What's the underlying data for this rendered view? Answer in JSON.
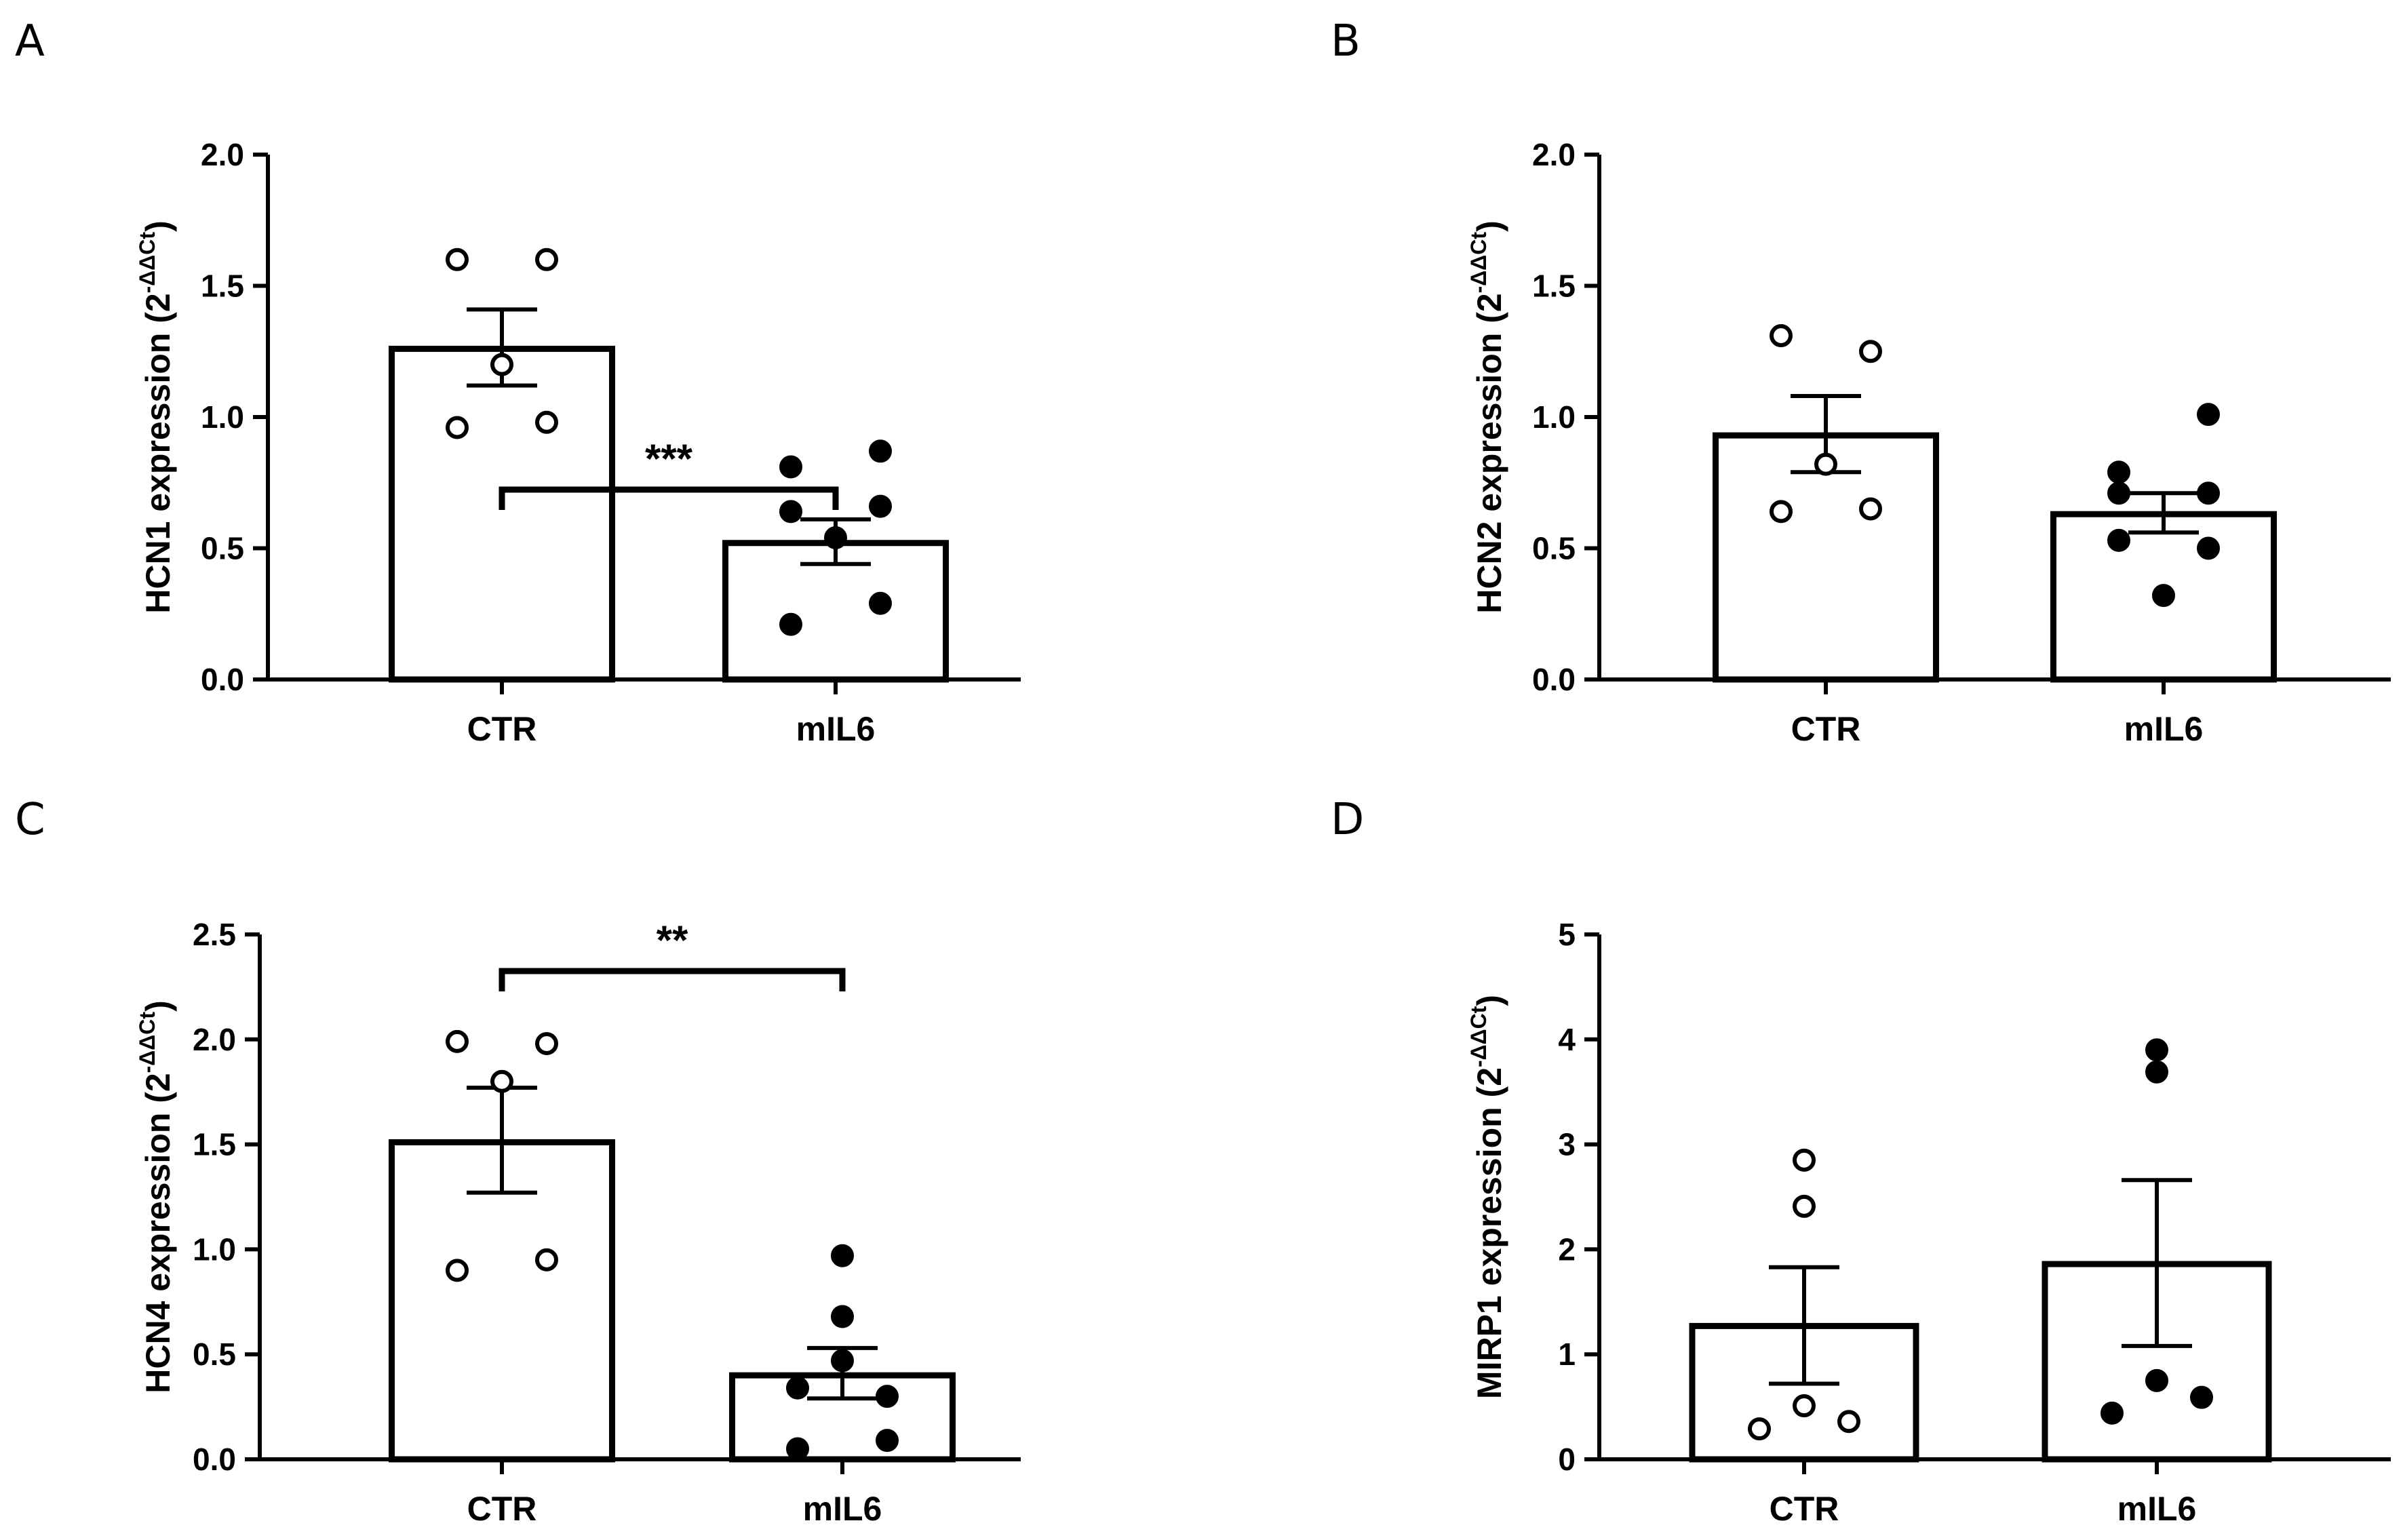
{
  "chart_data": [
    {
      "panel": "A",
      "type": "bar",
      "categories": [
        "CTR",
        "mIL6"
      ],
      "ylabel": "HCN1 expression (2",
      "ylabel_exponent": "-ΔΔCt",
      "ylabel_close": ")",
      "ylim": [
        0,
        2.0
      ],
      "yticks": [
        "0.0",
        "0.5",
        "1.0",
        "1.5",
        "2.0"
      ],
      "ytick_values": [
        0,
        0.5,
        1.0,
        1.5,
        2.0
      ],
      "bars": [
        {
          "mean": 1.26,
          "sem_low": 1.12,
          "sem_high": 1.41
        },
        {
          "mean": 0.52,
          "sem_low": 0.44,
          "sem_high": 0.61
        }
      ],
      "points": [
        [
          [
            -0.15,
            1.6
          ],
          [
            0.15,
            1.6
          ],
          [
            0.0,
            1.2
          ],
          [
            -0.15,
            0.96
          ],
          [
            0.15,
            0.98
          ]
        ],
        [
          [
            -0.15,
            0.81
          ],
          [
            0.15,
            0.87
          ],
          [
            -0.15,
            0.64
          ],
          [
            0.15,
            0.66
          ],
          [
            0.0,
            0.54
          ],
          [
            -0.15,
            0.21
          ],
          [
            0.15,
            0.29
          ]
        ]
      ],
      "significance": "***"
    },
    {
      "panel": "B",
      "type": "bar",
      "categories": [
        "CTR",
        "mIL6"
      ],
      "ylabel": "HCN2 expression (2",
      "ylabel_exponent": "-ΔΔCt",
      "ylabel_close": ")",
      "ylim": [
        0,
        2.0
      ],
      "yticks": [
        "0.0",
        "0.5",
        "1.0",
        "1.5",
        "2.0"
      ],
      "ytick_values": [
        0,
        0.5,
        1.0,
        1.5,
        2.0
      ],
      "bars": [
        {
          "mean": 0.93,
          "sem_low": 0.79,
          "sem_high": 1.08
        },
        {
          "mean": 0.63,
          "sem_low": 0.56,
          "sem_high": 0.71
        }
      ],
      "points": [
        [
          [
            -0.15,
            1.31
          ],
          [
            0.15,
            1.25
          ],
          [
            0.0,
            0.82
          ],
          [
            -0.15,
            0.64
          ],
          [
            0.15,
            0.65
          ]
        ],
        [
          [
            0.15,
            1.01
          ],
          [
            -0.15,
            0.79
          ],
          [
            -0.15,
            0.71
          ],
          [
            0.15,
            0.71
          ],
          [
            -0.15,
            0.53
          ],
          [
            0.15,
            0.5
          ],
          [
            0.0,
            0.32
          ]
        ]
      ],
      "significance": ""
    },
    {
      "panel": "C",
      "type": "bar",
      "categories": [
        "CTR",
        "mIL6"
      ],
      "ylabel": "HCN4 expression (2",
      "ylabel_exponent": "-ΔΔCt",
      "ylabel_close": ")",
      "ylim": [
        0,
        2.5
      ],
      "yticks": [
        "0.0",
        "0.5",
        "1.0",
        "1.5",
        "2.0",
        "2.5"
      ],
      "ytick_values": [
        0,
        0.5,
        1.0,
        1.5,
        2.0,
        2.5
      ],
      "bars": [
        {
          "mean": 1.51,
          "sem_low": 1.27,
          "sem_high": 1.77
        },
        {
          "mean": 0.4,
          "sem_low": 0.29,
          "sem_high": 0.53
        }
      ],
      "points": [
        [
          [
            -0.15,
            1.99
          ],
          [
            0.15,
            1.98
          ],
          [
            0.0,
            1.8
          ],
          [
            -0.15,
            0.9
          ],
          [
            0.15,
            0.95
          ]
        ],
        [
          [
            0.0,
            0.97
          ],
          [
            0.0,
            0.68
          ],
          [
            0.0,
            0.47
          ],
          [
            -0.15,
            0.34
          ],
          [
            0.15,
            0.3
          ],
          [
            -0.15,
            0.05
          ],
          [
            0.15,
            0.09
          ]
        ]
      ],
      "significance": "**"
    },
    {
      "panel": "D",
      "type": "bar",
      "categories": [
        "CTR",
        "mIL6"
      ],
      "ylabel": "MIRP1 expression (2",
      "ylabel_exponent": "-ΔΔCt",
      "ylabel_close": ")",
      "ylim": [
        0,
        5
      ],
      "yticks": [
        "0",
        "1",
        "2",
        "3",
        "4",
        "5"
      ],
      "ytick_values": [
        0,
        1,
        2,
        3,
        4,
        5
      ],
      "bars": [
        {
          "mean": 1.27,
          "sem_low": 0.72,
          "sem_high": 1.83
        },
        {
          "mean": 1.86,
          "sem_low": 1.08,
          "sem_high": 2.66
        }
      ],
      "points": [
        [
          [
            0.0,
            2.85
          ],
          [
            0.0,
            2.41
          ],
          [
            -0.15,
            0.29
          ],
          [
            0.0,
            0.51
          ],
          [
            0.15,
            0.36
          ]
        ],
        [
          [
            0.0,
            3.9
          ],
          [
            0.0,
            3.69
          ],
          [
            -0.15,
            0.44
          ],
          [
            0.0,
            0.75
          ],
          [
            0.15,
            0.59
          ]
        ]
      ],
      "significance": ""
    }
  ]
}
